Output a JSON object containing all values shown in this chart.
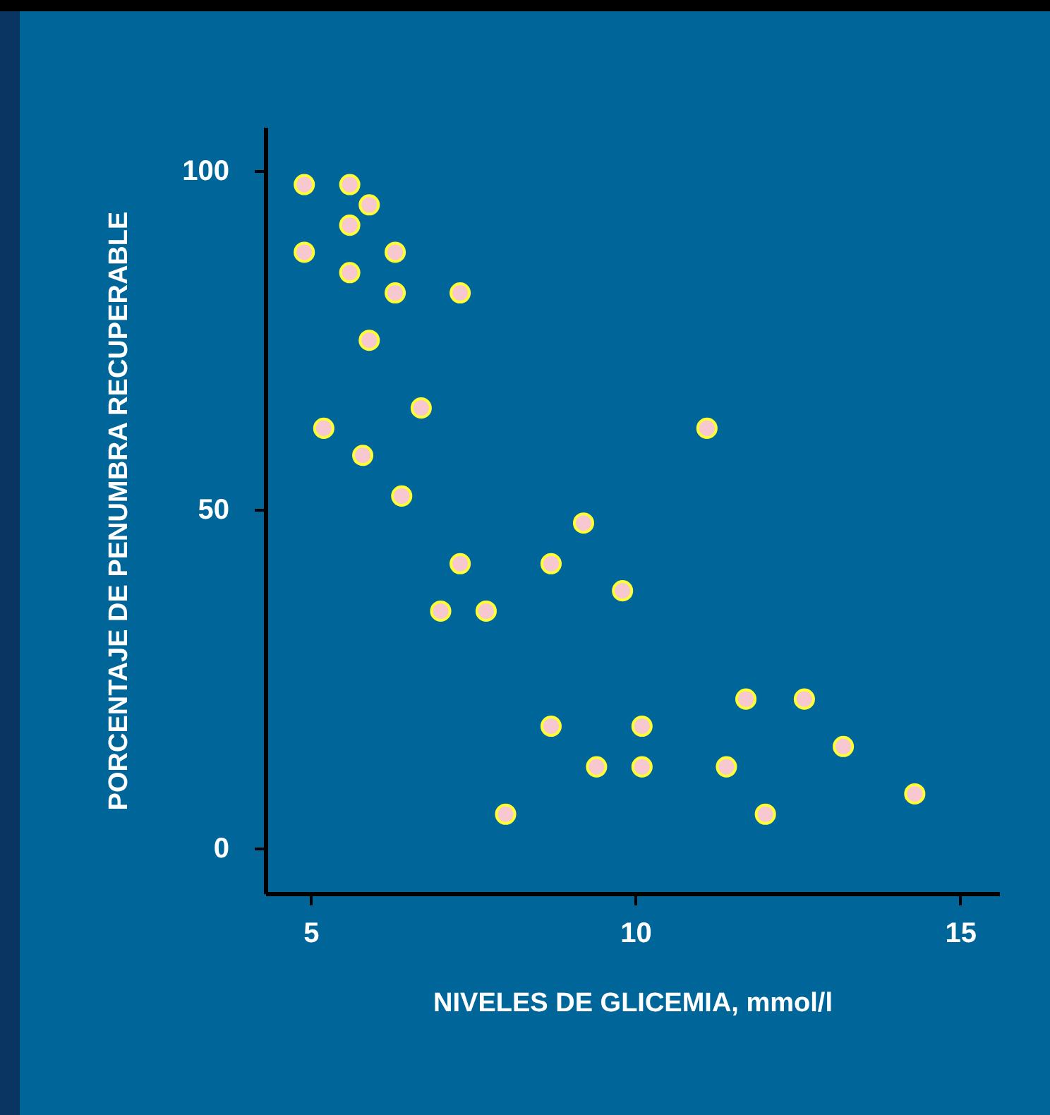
{
  "chart_data": {
    "type": "scatter",
    "xlabel": "NIVELES DE GLICEMIA, mmol/l",
    "ylabel": "PORCENTAJE DE PENUMBRA RECUPERABLE",
    "xlim": [
      4.3,
      15.6
    ],
    "xticks": [
      5,
      10,
      15
    ],
    "ylim": [
      -6.7,
      106.5
    ],
    "yticks": [
      0,
      50,
      100
    ],
    "marker": "circle",
    "series": [
      {
        "color": "#f8c8d0",
        "x": [
          4.9,
          5.6,
          5.9,
          5.6,
          4.9,
          6.3,
          5.6,
          6.3,
          7.3,
          5.9,
          6.7,
          5.2,
          5.8,
          11.1,
          6.4,
          9.2,
          7.3,
          8.7,
          9.8,
          7.0,
          7.7,
          11.7,
          12.6,
          8.7,
          10.1,
          13.2,
          9.4,
          10.1,
          11.4,
          8.0,
          12.0,
          14.3
        ],
        "values": [
          98,
          98,
          95,
          92,
          88,
          88,
          85,
          82,
          82,
          75,
          65,
          62,
          58,
          62,
          52,
          48,
          42,
          42,
          38,
          35,
          35,
          22,
          22,
          18,
          18,
          15,
          12,
          12,
          12,
          5,
          5,
          8
        ]
      }
    ]
  }
}
